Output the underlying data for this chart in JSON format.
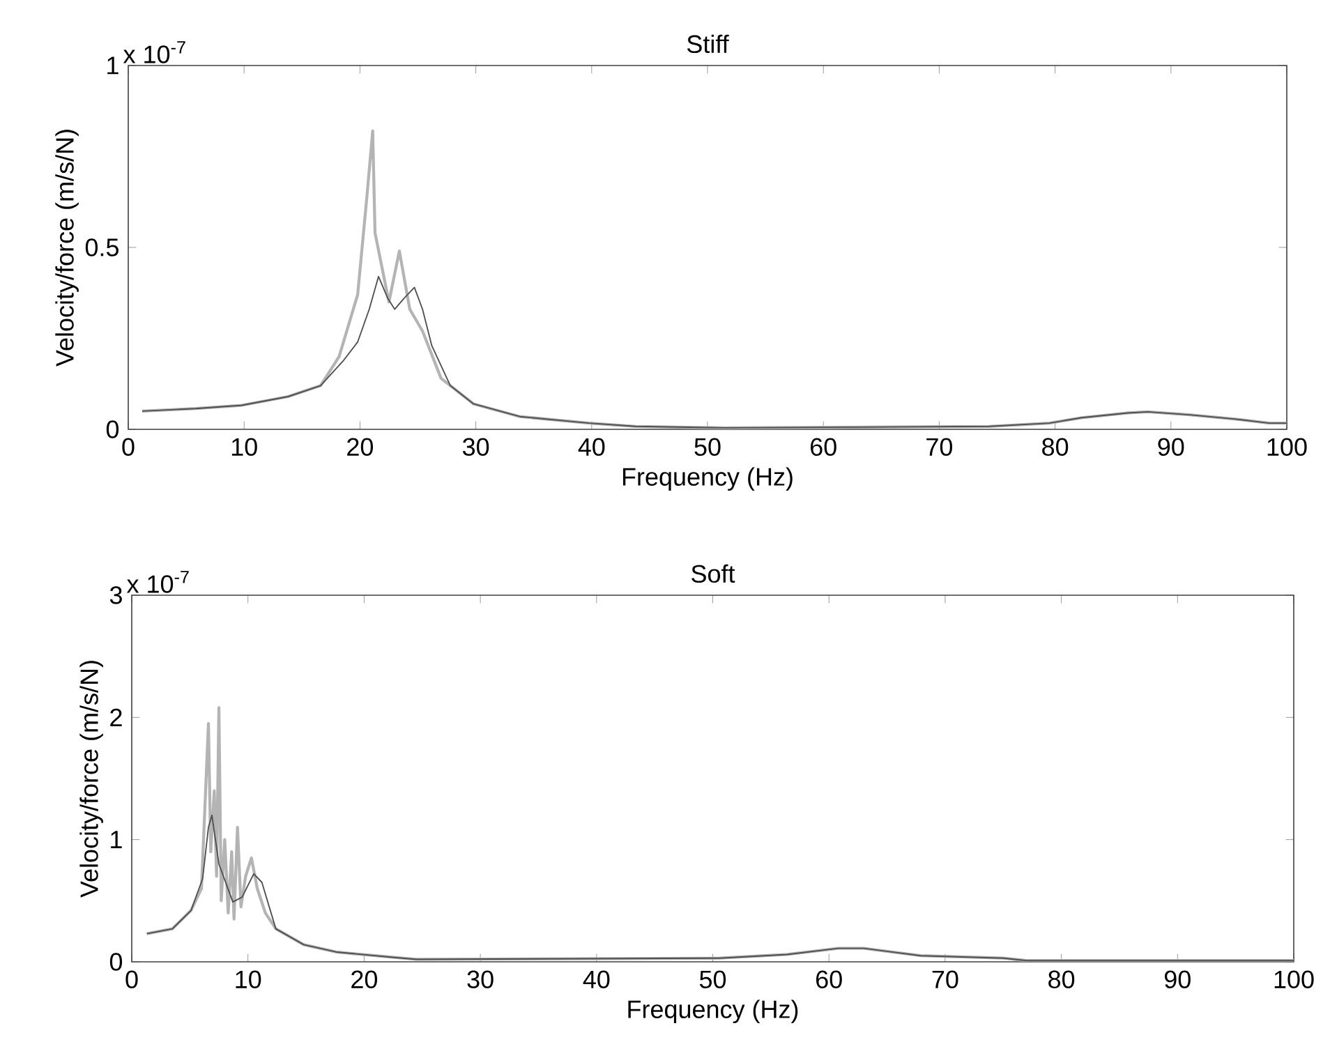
{
  "chart_data": [
    {
      "type": "line",
      "title": "Stiff",
      "xlabel": "Frequency (Hz)",
      "ylabel": "Velocity/force (m/s/N)",
      "annotations": [
        "x 10$^{-7}$"
      ],
      "xlim": [
        0,
        100
      ],
      "xticks": [
        0,
        10,
        20,
        30,
        40,
        50,
        60,
        70,
        80,
        90,
        100
      ],
      "ylim": [
        0,
        1
      ],
      "yticks": [
        0,
        0.5,
        1
      ],
      "grid": false,
      "series": [
        {
          "color": "#b4b4b4",
          "x": [
            1.2,
            5.8,
            9.8,
            13.8,
            16.6,
            18.2,
            19.8,
            20.6,
            21.1,
            21.3,
            22.5,
            23.4,
            24.3,
            25.4,
            27,
            29.8,
            33.8,
            39.8,
            43.8,
            51.5,
            74.3,
            79.5,
            82.3,
            86.3,
            88,
            91.6,
            95.6,
            98.5,
            100
          ],
          "values": [
            0.05,
            0.057,
            0.066,
            0.09,
            0.12,
            0.2,
            0.37,
            0.64,
            0.82,
            0.54,
            0.35,
            0.49,
            0.33,
            0.27,
            0.14,
            0.07,
            0.035,
            0.017,
            0.008,
            0.004,
            0.008,
            0.017,
            0.032,
            0.045,
            0.048,
            0.04,
            0.028,
            0.017,
            0.017
          ]
        },
        {
          "color": "#505050",
          "x": [
            1.2,
            5.8,
            9.8,
            13.8,
            16.6,
            18.6,
            19.8,
            20.8,
            21.6,
            22.4,
            23,
            23.8,
            24.7,
            25.4,
            26.2,
            27.8,
            29.8,
            33.8,
            39.8,
            43.8,
            51.5,
            74.3,
            79.5,
            82.3,
            86.3,
            88,
            91.6,
            95.6,
            98.5,
            100
          ],
          "values": [
            0.05,
            0.057,
            0.066,
            0.09,
            0.12,
            0.19,
            0.24,
            0.33,
            0.42,
            0.36,
            0.33,
            0.36,
            0.39,
            0.33,
            0.23,
            0.12,
            0.07,
            0.035,
            0.017,
            0.008,
            0.004,
            0.008,
            0.017,
            0.032,
            0.045,
            0.048,
            0.04,
            0.028,
            0.017,
            0.017
          ]
        }
      ]
    },
    {
      "type": "line",
      "title": "Soft",
      "xlabel": "Frequency (Hz)",
      "ylabel": "Velocity/force (m/s/N)",
      "annotations": [
        "x 10$^{-7}$"
      ],
      "xlim": [
        0,
        100
      ],
      "xticks": [
        0,
        10,
        20,
        30,
        40,
        50,
        60,
        70,
        80,
        90,
        100
      ],
      "ylim": [
        0,
        3
      ],
      "yticks": [
        0,
        1,
        2,
        3
      ],
      "grid": false,
      "series": [
        {
          "color": "#b4b4b4",
          "x": [
            1.3,
            3.5,
            5.1,
            6.0,
            6.4,
            6.6,
            6.8,
            7.1,
            7.3,
            7.5,
            7.7,
            8.0,
            8.3,
            8.6,
            8.8,
            9.1,
            9.4,
            9.8,
            10.3,
            10.8,
            11.5,
            12.4,
            14.8,
            17.6,
            22.1,
            24.5,
            50.6,
            56.4,
            60.8,
            63,
            67.9,
            75,
            77,
            100
          ],
          "values": [
            0.23,
            0.27,
            0.42,
            0.6,
            1.5,
            1.95,
            0.9,
            1.4,
            0.7,
            2.08,
            0.5,
            1.0,
            0.4,
            0.9,
            0.35,
            1.1,
            0.45,
            0.7,
            0.85,
            0.6,
            0.4,
            0.27,
            0.14,
            0.08,
            0.04,
            0.02,
            0.03,
            0.06,
            0.11,
            0.11,
            0.05,
            0.03,
            0.01,
            0.01
          ]
        },
        {
          "color": "#505050",
          "x": [
            1.3,
            3.5,
            5.1,
            6.1,
            6.6,
            6.9,
            7.5,
            8.7,
            9.5,
            10.5,
            11.2,
            12.4,
            14.8,
            17.6,
            22.1,
            24.5,
            50.6,
            56.4,
            60.8,
            63,
            67.9,
            75,
            77,
            100
          ],
          "values": [
            0.23,
            0.27,
            0.42,
            0.68,
            1.1,
            1.2,
            0.8,
            0.49,
            0.53,
            0.72,
            0.65,
            0.27,
            0.14,
            0.08,
            0.04,
            0.02,
            0.03,
            0.06,
            0.11,
            0.11,
            0.05,
            0.03,
            0.01,
            0.01
          ]
        }
      ]
    }
  ]
}
